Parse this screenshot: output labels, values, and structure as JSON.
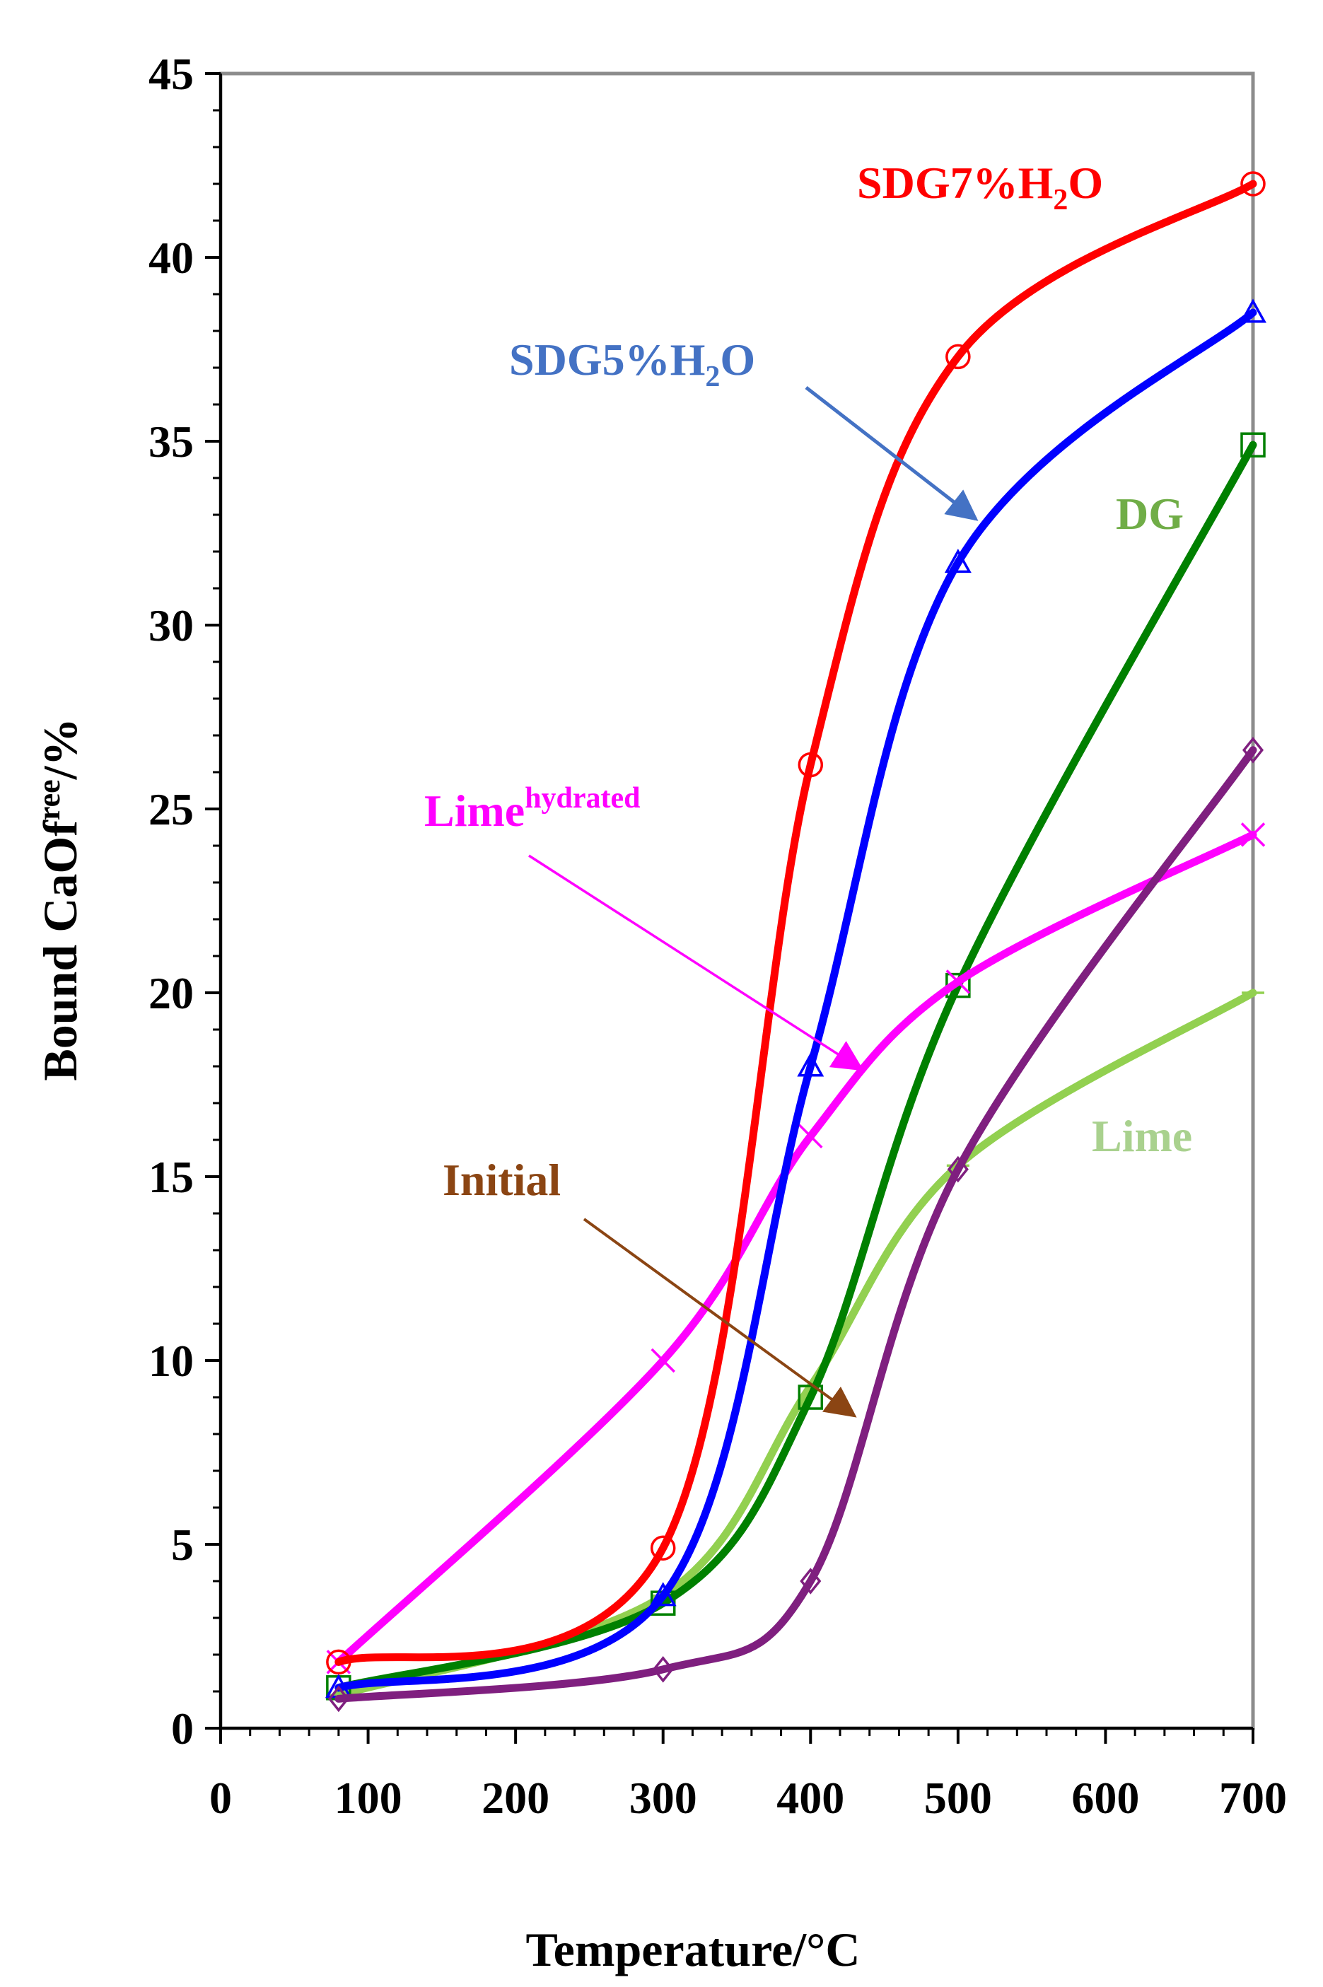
{
  "chart_data": {
    "type": "line",
    "title": "",
    "xlabel": "Temperature/°C",
    "ylabel": {
      "pre": "Bound CaOf",
      "sup": "ree",
      "post": "/%"
    },
    "xlim": [
      0,
      700
    ],
    "ylim": [
      0,
      45
    ],
    "x_ticks": [
      0,
      100,
      200,
      300,
      400,
      500,
      600,
      700
    ],
    "y_ticks": [
      0,
      5,
      10,
      15,
      20,
      25,
      30,
      35,
      40,
      45
    ],
    "grid": false,
    "series": [
      {
        "name": "SDG7%H2O",
        "label_parts": [
          "SDG7%H",
          "2",
          "O"
        ],
        "color": "#ff0000",
        "marker": "circle",
        "x": [
          80,
          300,
          400,
          500,
          700
        ],
        "values": [
          1.8,
          4.9,
          26.2,
          37.3,
          42.0
        ]
      },
      {
        "name": "SDG5%H2O",
        "label_parts": [
          "SDG5%H",
          "2",
          "O"
        ],
        "color": "#0000ff",
        "label_color": "#4472c4",
        "marker": "triangle",
        "x": [
          80,
          300,
          400,
          500,
          700
        ],
        "values": [
          1.1,
          3.6,
          18.0,
          31.7,
          38.5
        ]
      },
      {
        "name": "DG",
        "color": "#008000",
        "label_color": "#70ad47",
        "marker": "square",
        "x": [
          80,
          300,
          400,
          500,
          700
        ],
        "values": [
          1.1,
          3.4,
          9.0,
          20.2,
          34.9
        ]
      },
      {
        "name": "Lime",
        "color": "#92d050",
        "label_color": "#a9d18e",
        "marker": "dash",
        "x": [
          80,
          300,
          400,
          500,
          700
        ],
        "values": [
          0.9,
          3.6,
          9.3,
          15.3,
          20.0
        ]
      },
      {
        "name": "Initial",
        "color": "#7f1f7f",
        "label_color": "#8b4513",
        "marker": "diamond",
        "x": [
          80,
          300,
          400,
          500,
          700
        ],
        "values": [
          0.8,
          1.6,
          4.0,
          15.2,
          26.6
        ]
      },
      {
        "name": "Limehydrated",
        "label_parts": [
          "Lime",
          "hydrated"
        ],
        "color": "#ff00ff",
        "marker": "x",
        "x": [
          80,
          300,
          400,
          500,
          700
        ],
        "values": [
          1.8,
          10.0,
          16.1,
          20.3,
          24.3
        ]
      }
    ]
  }
}
